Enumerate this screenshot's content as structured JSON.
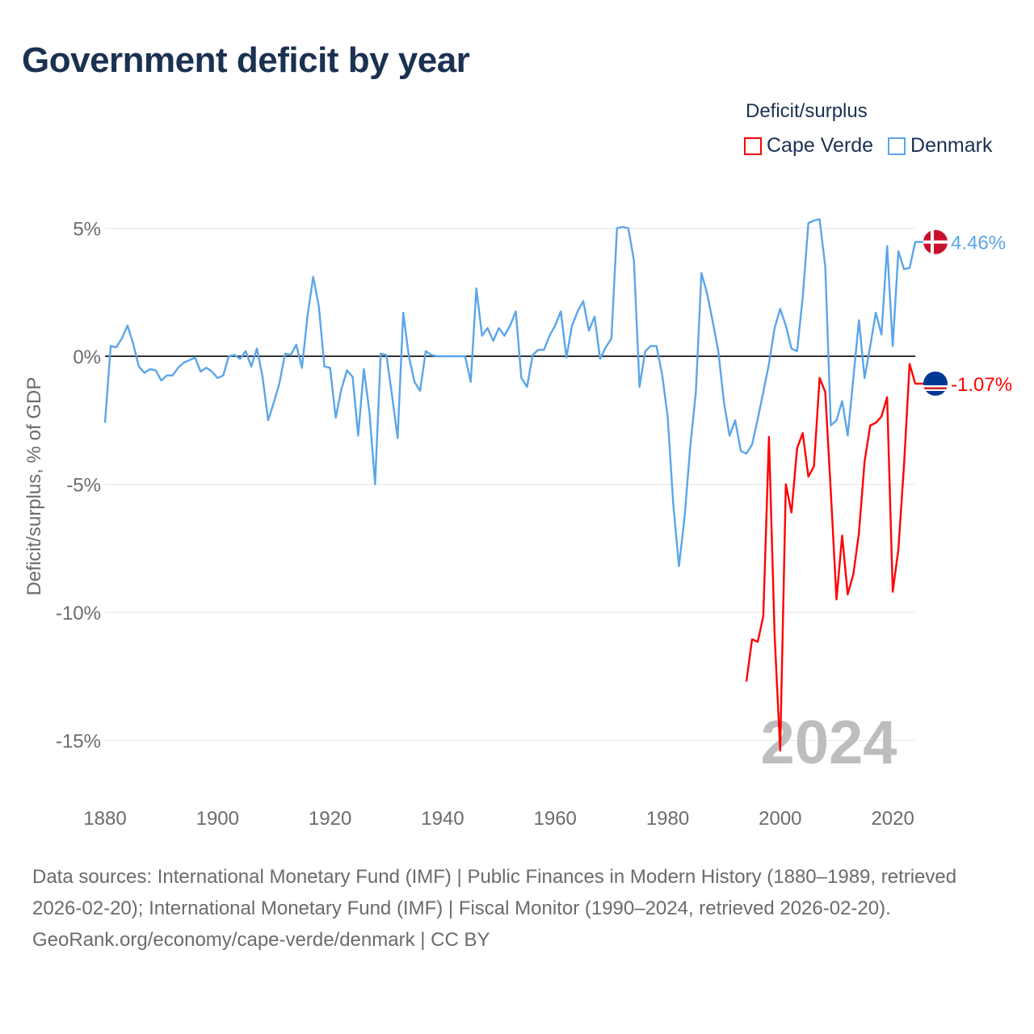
{
  "title": "Government deficit by year",
  "legend": {
    "title": "Deficit/surplus",
    "items": [
      {
        "label": "Cape Verde",
        "color": "#ff0000"
      },
      {
        "label": "Denmark",
        "color": "#5aa5ea"
      }
    ]
  },
  "footer": {
    "sources": "Data sources: International Monetary Fund (IMF) | Public Finances in Modern History (1880–1989, retrieved 2026-02-20); International Monetary Fund (IMF) | Fiscal Monitor (1990–2024, retrieved 2026-02-20).",
    "credit": "GeoRank.org/economy/cape-verde/denmark | CC BY"
  },
  "chart_data": {
    "type": "line",
    "title": "Government deficit by year",
    "xlabel": "",
    "ylabel": "Deficit/surplus, % of GDP",
    "xlim": [
      1880,
      2024
    ],
    "ylim": [
      -15,
      5
    ],
    "x_ticks": [
      "1880",
      "1900",
      "1920",
      "1940",
      "1960",
      "1980",
      "2000",
      "2020"
    ],
    "y_ticks": [
      {
        "value": 5,
        "label": "5%"
      },
      {
        "value": 0,
        "label": "0%"
      },
      {
        "value": -5,
        "label": "-5%"
      },
      {
        "value": -10,
        "label": "-10%"
      },
      {
        "value": -15,
        "label": "-15%"
      }
    ],
    "year_watermark": "2024",
    "legend_position": "top-right",
    "series": [
      {
        "name": "Denmark",
        "color": "#5aa5ea",
        "end_label": "4.46%",
        "start_year": 1880,
        "values": [
          -2.6,
          0.4,
          0.35,
          0.7,
          1.2,
          0.5,
          -0.4,
          -0.65,
          -0.5,
          -0.55,
          -0.95,
          -0.75,
          -0.75,
          -0.45,
          -0.25,
          -0.15,
          -0.05,
          -0.6,
          -0.45,
          -0.6,
          -0.85,
          -0.75,
          0,
          0.05,
          -0.1,
          0.2,
          -0.4,
          0.3,
          -0.8,
          -2.5,
          -1.8,
          -1.05,
          0.1,
          0.05,
          0.45,
          -0.45,
          1.6,
          3.1,
          1.95,
          -0.4,
          -0.45,
          -2.4,
          -1.3,
          -0.55,
          -0.8,
          -3.1,
          -0.5,
          -2.2,
          -5.0,
          0.1,
          0.05,
          -1.5,
          -3.2,
          1.7,
          0,
          -1.0,
          -1.35,
          0.2,
          0.05,
          0,
          0,
          0,
          0,
          0,
          0,
          -1.0,
          2.65,
          0.8,
          1.1,
          0.6,
          1.1,
          0.8,
          1.2,
          1.75,
          -0.85,
          -1.2,
          0.05,
          0.25,
          0.25,
          0.8,
          1.2,
          1.75,
          -0.05,
          1.2,
          1.75,
          2.15,
          1.0,
          1.55,
          -0.1,
          0.35,
          0.7,
          5.0,
          5.05,
          5.0,
          3.75,
          -1.2,
          0.2,
          0.4,
          0.4,
          -0.7,
          -2.35,
          -5.8,
          -8.2,
          -6.3,
          -3.55,
          -1.4,
          3.25,
          2.45,
          1.35,
          0.2,
          -1.8,
          -3.1,
          -2.5,
          -3.7,
          -3.8,
          -3.45,
          -2.45,
          -1.4,
          -0.3,
          1.1,
          1.85,
          1.2,
          0.3,
          0.2,
          2.3,
          5.2,
          5.3,
          5.35,
          3.5,
          -2.7,
          -2.5,
          -1.75,
          -3.1,
          -0.85,
          1.4,
          -0.85,
          0.4,
          1.7,
          0.85,
          4.3,
          0.4,
          4.1,
          3.4,
          3.45,
          4.46
        ]
      },
      {
        "name": "Cape Verde",
        "color": "#ff0000",
        "end_label": "-1.07%",
        "start_year": 1994,
        "values": [
          -12.7,
          -11.05,
          -11.15,
          -10.15,
          -3.15,
          -10.9,
          -15.4,
          -5.0,
          -6.1,
          -3.6,
          -3.0,
          -4.7,
          -4.3,
          -0.85,
          -1.4,
          -5.3,
          -9.5,
          -7.0,
          -9.3,
          -8.5,
          -6.9,
          -4.1,
          -2.7,
          -2.6,
          -2.35,
          -1.6,
          -9.2,
          -7.55,
          -4.25,
          -0.3,
          -1.07
        ]
      }
    ]
  }
}
